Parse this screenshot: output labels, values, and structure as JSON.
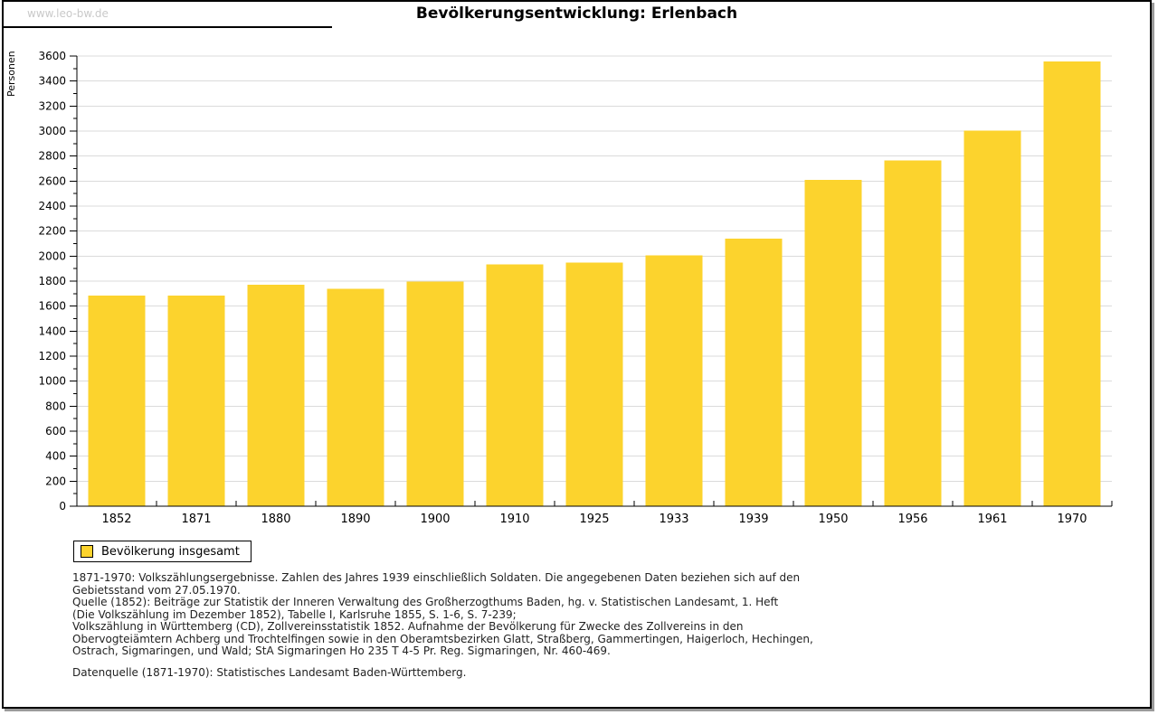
{
  "page": {
    "watermark": "www.leo-bw.de",
    "title": "Bevölkerungsentwicklung: Erlenbach"
  },
  "chart_data": {
    "type": "bar",
    "title": "Bevölkerungsentwicklung: Erlenbach",
    "xlabel": "",
    "ylabel": "Personen",
    "categories": [
      "1852",
      "1871",
      "1880",
      "1890",
      "1900",
      "1910",
      "1925",
      "1933",
      "1939",
      "1950",
      "1956",
      "1961",
      "1970"
    ],
    "series": [
      {
        "name": "Bevölkerung insgesamt",
        "values": [
          1685,
          1685,
          1770,
          1740,
          1795,
          1935,
          1950,
          2005,
          2140,
          2610,
          2765,
          3005,
          3555
        ]
      }
    ],
    "ylim": [
      0,
      3600
    ],
    "ytick_step": 200,
    "yminor_step": 100,
    "grid": true,
    "grid_color": "#dbdbdb",
    "bar_color": "#FCD32D",
    "axis_color": "#000000",
    "legend_position": "bottom-left"
  },
  "legend": {
    "swatch_color": "#FCD32D",
    "label": "Bevölkerung insgesamt"
  },
  "footnotes": {
    "block1": [
      "1871-1970: Volkszählungsergebnisse. Zahlen des Jahres 1939 einschließlich Soldaten. Die angegebenen Daten beziehen sich auf den",
      "Gebietsstand vom 27.05.1970.",
      "Quelle (1852): Beiträge zur Statistik der Inneren Verwaltung des Großherzogthums Baden, hg. v. Statistischen Landesamt, 1. Heft",
      "(Die Volkszählung im Dezember 1852), Tabelle I, Karlsruhe 1855, S. 1-6, S. 7-239;",
      "Volkszählung in Württemberg (CD), Zollvereinsstatistik 1852. Aufnahme der Bevölkerung für Zwecke des Zollvereins in den",
      "Obervogteiämtern Achberg und Trochtelfingen sowie in den Oberamtsbezirken Glatt, Straßberg, Gammertingen, Haigerloch, Hechingen,",
      "Ostrach, Sigmaringen, und Wald; StA Sigmaringen Ho 235 T 4-5 Pr. Reg. Sigmaringen, Nr. 460-469."
    ],
    "block2": "Datenquelle (1871-1970): Statistisches Landesamt Baden-Württemberg."
  }
}
